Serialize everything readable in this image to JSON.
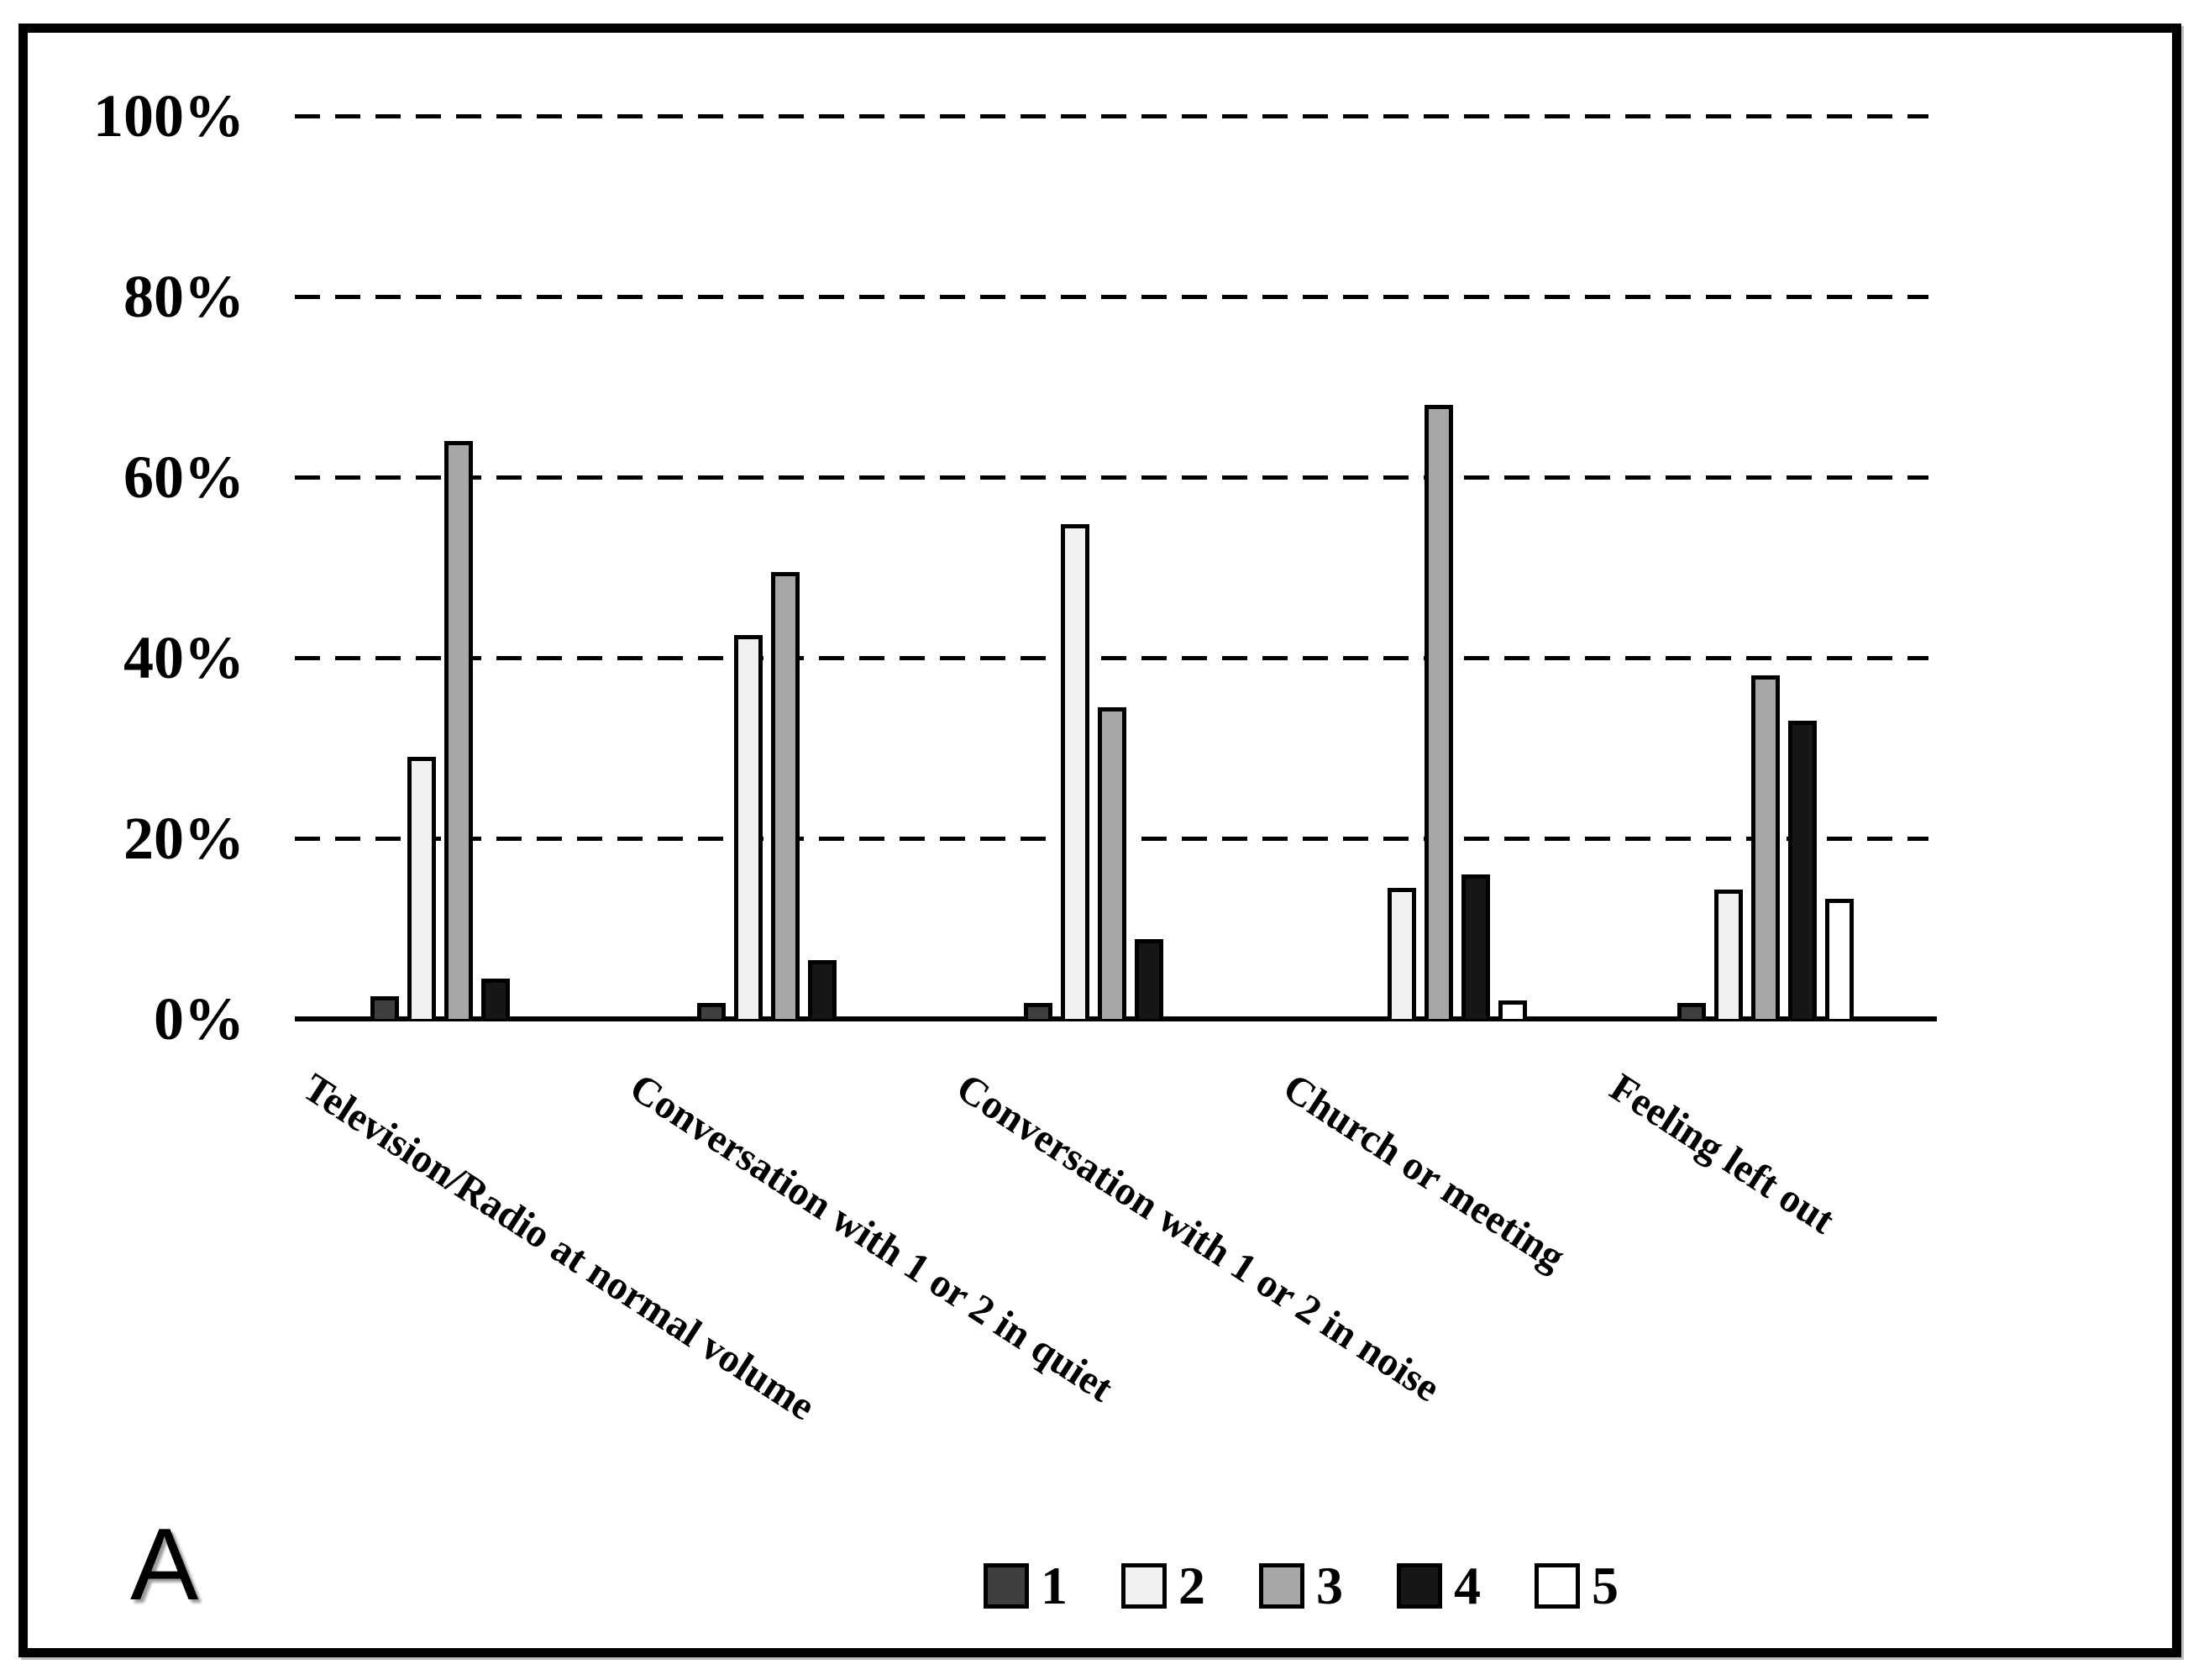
{
  "panel_label": "A",
  "colors": {
    "series_fills": [
      "#3f3f3f",
      "#f1f1f1",
      "#a7a7a7",
      "#161616",
      "#ffffff"
    ],
    "bar_border": "#000000",
    "gridline": "#000000",
    "background": "#ffffff",
    "frame_border": "#000000"
  },
  "chart_data": {
    "type": "bar",
    "title": "",
    "xlabel": "",
    "ylabel": "",
    "ylim": [
      0,
      100
    ],
    "grid": "dashed horizontal lines every 20%",
    "legend_position": "bottom center",
    "y_tick_labels": [
      "100%",
      "80%",
      "60%",
      "40%",
      "20%",
      "0%"
    ],
    "y_tick_values": [
      100,
      80,
      60,
      40,
      20,
      0
    ],
    "categories": [
      "Television/Radio at normal volume",
      "Conversation with 1 or 2 in quiet",
      "Conversation with 1 or 2 in noise",
      "Church or meeting",
      "Feeling left out"
    ],
    "series": [
      {
        "name": "1",
        "values": [
          2.5,
          1.8,
          1.8,
          0,
          1.8
        ]
      },
      {
        "name": "2",
        "values": [
          29,
          42.5,
          54.8,
          14.5,
          14.3
        ]
      },
      {
        "name": "3",
        "values": [
          64,
          49.5,
          34.5,
          68,
          38
        ]
      },
      {
        "name": "4",
        "values": [
          4.5,
          6.5,
          8.8,
          16,
          33
        ]
      },
      {
        "name": "5",
        "values": [
          0,
          0,
          0,
          2,
          13.3
        ]
      }
    ],
    "legend_entries": [
      "1",
      "2",
      "3",
      "4",
      "5"
    ]
  }
}
